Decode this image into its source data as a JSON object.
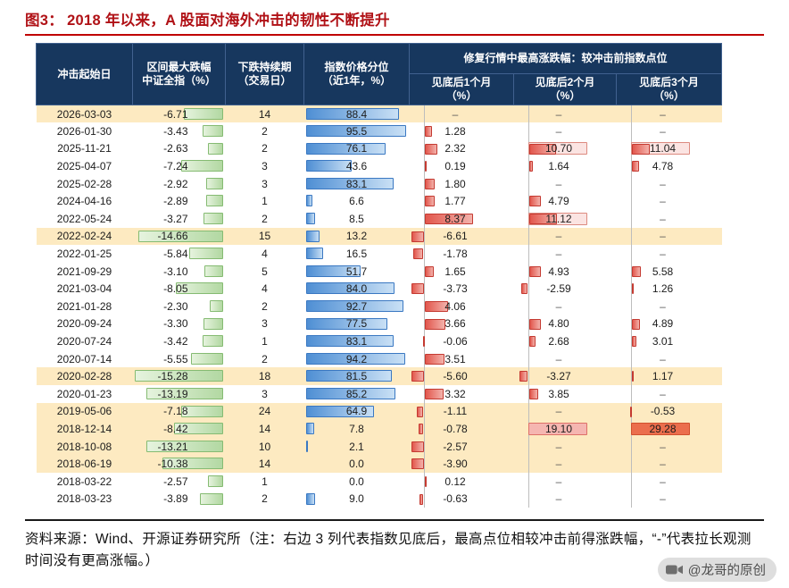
{
  "title": {
    "label": "图3：",
    "text": "2018 年以来，A 股面对海外冲击的韧性不断提升"
  },
  "colors": {
    "title_red": "#b01116",
    "rule_red": "#c00000",
    "header_bg": "#17375e",
    "row_highlight": "#fdeac1",
    "bar_green": "#b2d8a2",
    "bar_blue": "#4f8fd4",
    "bar_red": "#e2574d",
    "box_pink": "#f5b6b1",
    "box_red": "#eb6e4d"
  },
  "table": {
    "header": {
      "date": "冲击起始日",
      "drawdown_1": "区间最大跌幅",
      "drawdown_2": "中证全指（%）",
      "duration_1": "下跌持续期",
      "duration_2": "（交易日）",
      "percentile_1": "指数价格分位",
      "percentile_2": "（近1年，%）",
      "recovery_group": "修复行情中最高涨跌幅：较冲击前指数点位",
      "m1_1": "见底后1个月",
      "m1_2": "（%）",
      "m2_1": "见底后2个月",
      "m2_2": "（%）",
      "m3_1": "见底后3个月",
      "m3_2": "（%）"
    },
    "missing_marker": "–",
    "rows": [
      {
        "date": "2026-03-03",
        "drawdown": "-6.71",
        "duration": "14",
        "percentile": "88.4",
        "m1": "–",
        "m2": "–",
        "m3": "–",
        "row_hl": true
      },
      {
        "date": "2026-01-30",
        "drawdown": "-3.43",
        "duration": "2",
        "percentile": "95.5",
        "m1": "1.28",
        "m2": "–",
        "m3": "–"
      },
      {
        "date": "2025-11-21",
        "drawdown": "-2.63",
        "duration": "2",
        "percentile": "76.1",
        "m1": "2.32",
        "m2": "10.70",
        "m3": "11.04",
        "m2_hl": "light",
        "m3_hl": "light"
      },
      {
        "date": "2025-04-07",
        "drawdown": "-7.24",
        "duration": "3",
        "percentile": "43.6",
        "m1": "0.19",
        "m2": "1.64",
        "m3": "4.78"
      },
      {
        "date": "2025-02-28",
        "drawdown": "-2.92",
        "duration": "3",
        "percentile": "83.1",
        "m1": "1.80",
        "m2": "–",
        "m3": "–"
      },
      {
        "date": "2024-04-16",
        "drawdown": "-2.89",
        "duration": "1",
        "percentile": "6.6",
        "m1": "1.77",
        "m2": "4.79",
        "m3": "–"
      },
      {
        "date": "2022-05-24",
        "drawdown": "-3.27",
        "duration": "2",
        "percentile": "8.5",
        "m1": "8.37",
        "m2": "11.12",
        "m3": "–",
        "m2_hl": "light"
      },
      {
        "date": "2022-02-24",
        "drawdown": "-14.66",
        "duration": "15",
        "percentile": "13.2",
        "m1": "-6.61",
        "m2": "–",
        "m3": "–",
        "row_hl": true
      },
      {
        "date": "2022-01-25",
        "drawdown": "-5.84",
        "duration": "4",
        "percentile": "16.5",
        "m1": "-1.78",
        "m2": "–",
        "m3": "–"
      },
      {
        "date": "2021-09-29",
        "drawdown": "-3.10",
        "duration": "5",
        "percentile": "51.7",
        "m1": "1.65",
        "m2": "4.93",
        "m3": "5.58"
      },
      {
        "date": "2021-03-04",
        "drawdown": "-8.05",
        "duration": "4",
        "percentile": "84.0",
        "m1": "-3.73",
        "m2": "-2.59",
        "m3": "1.26"
      },
      {
        "date": "2021-01-28",
        "drawdown": "-2.30",
        "duration": "2",
        "percentile": "92.7",
        "m1": "4.06",
        "m2": "–",
        "m3": "–"
      },
      {
        "date": "2020-09-24",
        "drawdown": "-3.30",
        "duration": "3",
        "percentile": "77.5",
        "m1": "3.66",
        "m2": "4.80",
        "m3": "4.89"
      },
      {
        "date": "2020-07-24",
        "drawdown": "-3.42",
        "duration": "1",
        "percentile": "83.1",
        "m1": "-0.06",
        "m2": "2.68",
        "m3": "3.01"
      },
      {
        "date": "2020-07-14",
        "drawdown": "-5.55",
        "duration": "2",
        "percentile": "94.2",
        "m1": "3.51",
        "m2": "–",
        "m3": "–"
      },
      {
        "date": "2020-02-28",
        "drawdown": "-15.28",
        "duration": "18",
        "percentile": "81.5",
        "m1": "-5.60",
        "m2": "-3.27",
        "m3": "1.17",
        "row_hl": true
      },
      {
        "date": "2020-01-23",
        "drawdown": "-13.19",
        "duration": "3",
        "percentile": "85.2",
        "m1": "3.32",
        "m2": "3.85",
        "m3": "–"
      },
      {
        "date": "2019-05-06",
        "drawdown": "-7.18",
        "duration": "24",
        "percentile": "64.9",
        "m1": "-1.11",
        "m2": "–",
        "m3": "-0.53",
        "row_hl": true
      },
      {
        "date": "2018-12-14",
        "drawdown": "-8.42",
        "duration": "14",
        "percentile": "7.8",
        "m1": "-0.78",
        "m2": "19.10",
        "m3": "29.28",
        "row_hl": true,
        "m2_hl": "pink",
        "m3_hl": "red"
      },
      {
        "date": "2018-10-08",
        "drawdown": "-13.21",
        "duration": "10",
        "percentile": "2.1",
        "m1": "-2.57",
        "m2": "–",
        "m3": "–",
        "row_hl": true
      },
      {
        "date": "2018-06-19",
        "drawdown": "-10.38",
        "duration": "14",
        "percentile": "0.0",
        "m1": "-3.90",
        "m2": "–",
        "m3": "–",
        "row_hl": true
      },
      {
        "date": "2018-03-22",
        "drawdown": "-2.57",
        "duration": "1",
        "percentile": "0.0",
        "m1": "0.12",
        "m2": "–",
        "m3": "–"
      },
      {
        "date": "2018-03-23",
        "drawdown": "-3.89",
        "duration": "2",
        "percentile": "9.0",
        "m1": "-0.63",
        "m2": "–",
        "m3": "–"
      }
    ]
  },
  "chart_data": {
    "type": "table",
    "title": "图3：2018 年以来，A 股面对海外冲击的韧性不断提升",
    "columns": [
      "冲击起始日",
      "区间最大跌幅 中证全指（%）",
      "下跌持续期（交易日）",
      "指数价格分位（近1年，%）",
      "修复行情中最高涨跌幅 见底后1个月（%）",
      "修复行情中最高涨跌幅 见底后2个月（%）",
      "修复行情中最高涨跌幅 见底后3个月（%）"
    ],
    "rows": [
      [
        "2026-03-03",
        -6.71,
        14,
        88.4,
        null,
        null,
        null
      ],
      [
        "2026-01-30",
        -3.43,
        2,
        95.5,
        1.28,
        null,
        null
      ],
      [
        "2025-11-21",
        -2.63,
        2,
        76.1,
        2.32,
        10.7,
        11.04
      ],
      [
        "2025-04-07",
        -7.24,
        3,
        43.6,
        0.19,
        1.64,
        4.78
      ],
      [
        "2025-02-28",
        -2.92,
        3,
        83.1,
        1.8,
        null,
        null
      ],
      [
        "2024-04-16",
        -2.89,
        1,
        6.6,
        1.77,
        4.79,
        null
      ],
      [
        "2022-05-24",
        -3.27,
        2,
        8.5,
        8.37,
        11.12,
        null
      ],
      [
        "2022-02-24",
        -14.66,
        15,
        13.2,
        -6.61,
        null,
        null
      ],
      [
        "2022-01-25",
        -5.84,
        4,
        16.5,
        -1.78,
        null,
        null
      ],
      [
        "2021-09-29",
        -3.1,
        5,
        51.7,
        1.65,
        4.93,
        5.58
      ],
      [
        "2021-03-04",
        -8.05,
        4,
        84.0,
        -3.73,
        -2.59,
        1.26
      ],
      [
        "2021-01-28",
        -2.3,
        2,
        92.7,
        4.06,
        null,
        null
      ],
      [
        "2020-09-24",
        -3.3,
        3,
        77.5,
        3.66,
        4.8,
        4.89
      ],
      [
        "2020-07-24",
        -3.42,
        1,
        83.1,
        -0.06,
        2.68,
        3.01
      ],
      [
        "2020-07-14",
        -5.55,
        2,
        94.2,
        3.51,
        null,
        null
      ],
      [
        "2020-02-28",
        -15.28,
        18,
        81.5,
        -5.6,
        -3.27,
        1.17
      ],
      [
        "2020-01-23",
        -13.19,
        3,
        85.2,
        3.32,
        3.85,
        null
      ],
      [
        "2019-05-06",
        -7.18,
        24,
        64.9,
        -1.11,
        null,
        -0.53
      ],
      [
        "2018-12-14",
        -8.42,
        14,
        7.8,
        -0.78,
        19.1,
        29.28
      ],
      [
        "2018-10-08",
        -13.21,
        10,
        2.1,
        -2.57,
        null,
        null
      ],
      [
        "2018-06-19",
        -10.38,
        14,
        0.0,
        -3.9,
        null,
        null
      ],
      [
        "2018-03-22",
        -2.57,
        1,
        0.0,
        0.12,
        null,
        null
      ],
      [
        "2018-03-23",
        -3.89,
        2,
        9.0,
        -0.63,
        null,
        null
      ]
    ]
  },
  "footer": {
    "note": "资料来源：Wind、开源证券研究所（注：右边 3 列代表指数见底后，最高点位相较冲击前得涨跌幅，“-”代表拉长观测时间没有更高涨幅。）"
  },
  "watermark": {
    "text": "@龙哥的原创"
  }
}
